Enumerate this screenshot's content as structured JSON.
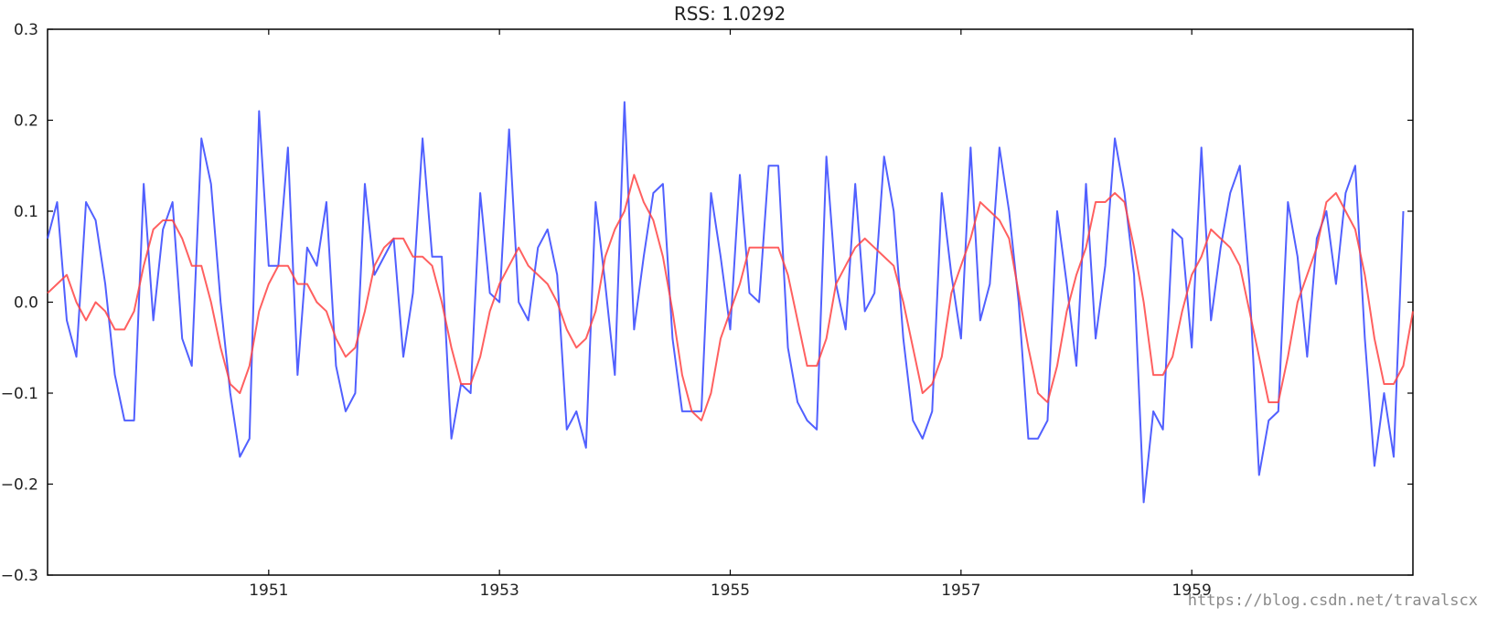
{
  "chart_data": {
    "type": "line",
    "title": "RSS: 1.0292",
    "xlabel": "",
    "ylabel": "",
    "x_start": "1949-02",
    "x_end": "1960-12",
    "x_frequency": "monthly",
    "xlim": [
      "1949-02",
      "1960-12"
    ],
    "ylim": [
      -0.3,
      0.3
    ],
    "x_ticks": [
      "1951",
      "1953",
      "1955",
      "1957",
      "1959"
    ],
    "y_ticks": [
      "0.3",
      "0.2",
      "0.1",
      "0.0",
      "−0.1",
      "−0.2",
      "−0.3"
    ],
    "grid": false,
    "legend": "none",
    "series": [
      {
        "color": "#3344ff",
        "values": [
          0.07,
          0.11,
          -0.02,
          -0.06,
          0.11,
          0.09,
          0.02,
          -0.08,
          -0.13,
          -0.13,
          0.13,
          -0.02,
          0.08,
          0.11,
          -0.04,
          -0.07,
          0.18,
          0.13,
          0.0,
          -0.1,
          -0.17,
          -0.15,
          0.21,
          0.04,
          0.04,
          0.17,
          -0.08,
          0.06,
          0.04,
          0.11,
          -0.07,
          -0.12,
          -0.1,
          0.13,
          0.03,
          0.05,
          0.07,
          -0.06,
          0.01,
          0.18,
          0.05,
          0.05,
          -0.15,
          -0.09,
          -0.1,
          0.12,
          0.01,
          0.0,
          0.19,
          -0.0,
          -0.02,
          0.06,
          0.08,
          0.03,
          -0.14,
          -0.12,
          -0.16,
          0.11,
          0.02,
          -0.08,
          0.22,
          -0.03,
          0.05,
          0.12,
          0.13,
          -0.04,
          -0.12,
          -0.12,
          -0.12,
          0.12,
          0.05,
          -0.03,
          0.14,
          0.01,
          0.0,
          0.15,
          0.15,
          -0.05,
          -0.11,
          -0.13,
          -0.14,
          0.16,
          0.02,
          -0.03,
          0.13,
          -0.01,
          0.01,
          0.16,
          0.1,
          -0.04,
          -0.13,
          -0.15,
          -0.12,
          0.12,
          0.03,
          -0.04,
          0.17,
          -0.02,
          0.02,
          0.17,
          0.1,
          0.0,
          -0.15,
          -0.15,
          -0.13,
          0.1,
          0.02,
          -0.07,
          0.13,
          -0.04,
          0.04,
          0.18,
          0.12,
          0.03,
          -0.22,
          -0.12,
          -0.14,
          0.08,
          0.07,
          -0.05,
          0.17,
          -0.02,
          0.06,
          0.12,
          0.15,
          0.02,
          -0.19,
          -0.13,
          -0.12,
          0.11,
          0.05,
          -0.06,
          0.07,
          0.1,
          0.02,
          0.12,
          0.15,
          -0.04,
          -0.18,
          -0.1,
          -0.17,
          0.1
        ]
      },
      {
        "color": "#ff4444",
        "values": [
          0.01,
          0.02,
          0.03,
          0.0,
          -0.02,
          -0.0,
          -0.01,
          -0.03,
          -0.03,
          -0.01,
          0.04,
          0.08,
          0.09,
          0.09,
          0.07,
          0.04,
          0.04,
          0.0,
          -0.05,
          -0.09,
          -0.1,
          -0.07,
          -0.01,
          0.02,
          0.04,
          0.04,
          0.02,
          0.02,
          0.0,
          -0.01,
          -0.04,
          -0.06,
          -0.05,
          -0.01,
          0.04,
          0.06,
          0.07,
          0.07,
          0.05,
          0.05,
          0.04,
          -0.0,
          -0.05,
          -0.09,
          -0.09,
          -0.06,
          -0.01,
          0.02,
          0.04,
          0.06,
          0.04,
          0.03,
          0.02,
          -0.0,
          -0.03,
          -0.05,
          -0.04,
          -0.01,
          0.05,
          0.08,
          0.1,
          0.14,
          0.11,
          0.09,
          0.05,
          -0.01,
          -0.08,
          -0.12,
          -0.13,
          -0.1,
          -0.04,
          -0.01,
          0.02,
          0.06,
          0.06,
          0.06,
          0.06,
          0.03,
          -0.02,
          -0.07,
          -0.07,
          -0.04,
          0.02,
          0.04,
          0.06,
          0.07,
          0.06,
          0.05,
          0.04,
          -0.0,
          -0.05,
          -0.1,
          -0.09,
          -0.06,
          0.01,
          0.04,
          0.07,
          0.11,
          0.1,
          0.09,
          0.07,
          0.01,
          -0.05,
          -0.1,
          -0.11,
          -0.07,
          -0.01,
          0.03,
          0.06,
          0.11,
          0.11,
          0.12,
          0.11,
          0.06,
          0.0,
          -0.08,
          -0.08,
          -0.06,
          -0.01,
          0.03,
          0.05,
          0.08,
          0.07,
          0.06,
          0.04,
          -0.01,
          -0.06,
          -0.11,
          -0.11,
          -0.06,
          -0.0,
          0.03,
          0.06,
          0.11,
          0.12,
          0.1,
          0.08,
          0.03,
          -0.04,
          -0.09,
          -0.09,
          -0.07,
          -0.01
        ]
      }
    ]
  },
  "watermark": "https://blog.csdn.net/travalscx"
}
